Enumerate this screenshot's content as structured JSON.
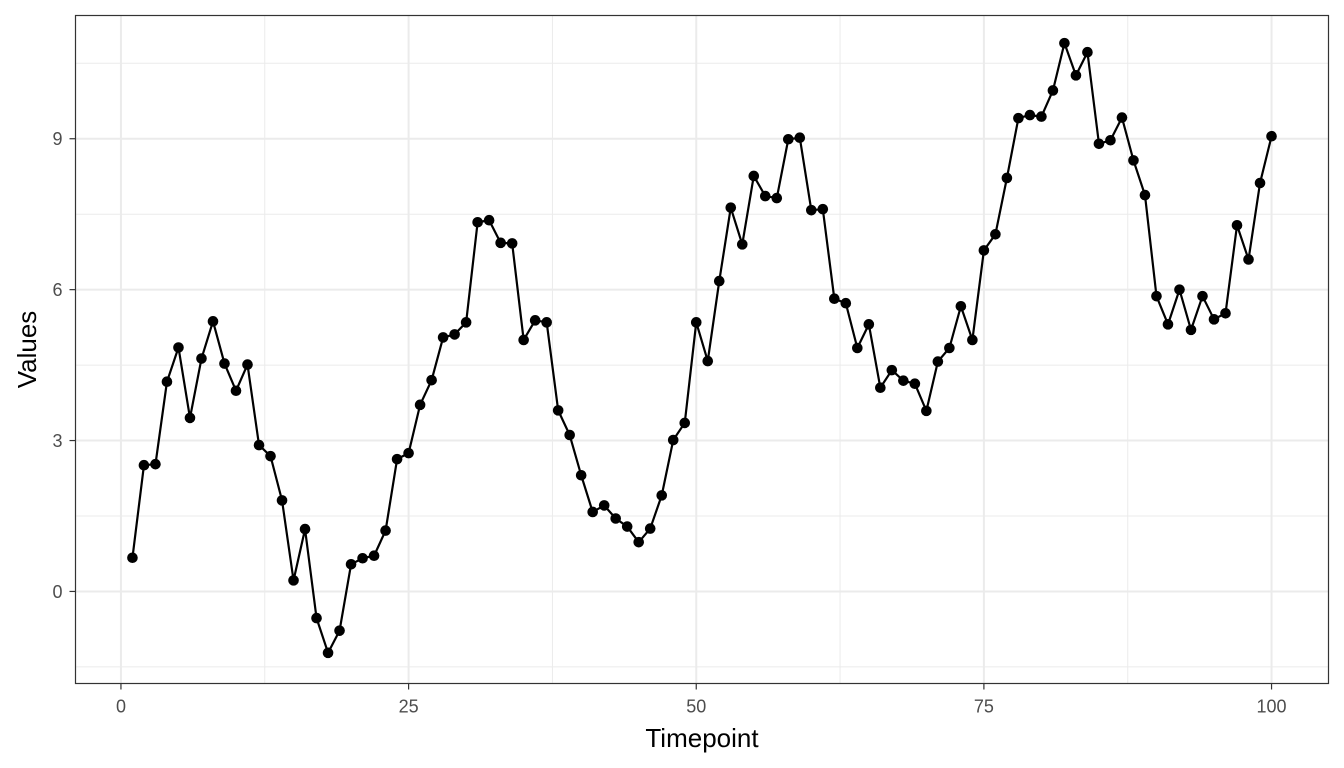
{
  "chart_data": {
    "type": "line",
    "title": "",
    "xlabel": "Timepoint",
    "ylabel": "Values",
    "xlim": [
      -3.95,
      104.95
    ],
    "ylim": [
      -1.83,
      11.45
    ],
    "x_ticks": [
      0,
      25,
      50,
      75,
      100
    ],
    "x_tick_labels": [
      "0",
      "25",
      "50",
      "75",
      "100"
    ],
    "x_minor_ticks": [
      12.5,
      37.5,
      62.5,
      87.5
    ],
    "y_ticks": [
      0,
      3,
      6,
      9
    ],
    "y_tick_labels": [
      "0",
      "3",
      "6",
      "9"
    ],
    "y_minor_ticks": [
      -1.5,
      1.5,
      4.5,
      7.5,
      10.5
    ],
    "grid": true,
    "legend": "none",
    "colors": {
      "line": "#000000",
      "point": "#000000",
      "grid": "#ebebeb",
      "panel_border": "#333333"
    },
    "series": [
      {
        "x": [
          1,
          2,
          3,
          4,
          5,
          6,
          7,
          8,
          9,
          10,
          11,
          12,
          13,
          14,
          15,
          16,
          17,
          18,
          19,
          20,
          21,
          22,
          23,
          24,
          25,
          26,
          27,
          28,
          29,
          30,
          31,
          32,
          33,
          34,
          35,
          36,
          37,
          38,
          39,
          40,
          41,
          42,
          43,
          44,
          45,
          46,
          47,
          48,
          49,
          50,
          51,
          52,
          53,
          54,
          55,
          56,
          57,
          58,
          59,
          60,
          61,
          62,
          63,
          64,
          65,
          66,
          67,
          68,
          69,
          70,
          71,
          72,
          73,
          74,
          75,
          76,
          77,
          78,
          79,
          80,
          81,
          82,
          83,
          84,
          85,
          86,
          87,
          88,
          89,
          90,
          91,
          92,
          93,
          94,
          95,
          96,
          97,
          98,
          99,
          100
        ],
        "values": [
          0.67,
          2.51,
          2.53,
          4.17,
          4.85,
          3.45,
          4.63,
          5.37,
          4.53,
          3.99,
          4.51,
          2.91,
          2.69,
          1.81,
          0.22,
          1.24,
          -0.53,
          -1.22,
          -0.78,
          0.54,
          0.66,
          0.71,
          1.21,
          2.63,
          2.75,
          3.71,
          4.2,
          5.05,
          5.11,
          5.35,
          7.34,
          7.38,
          6.93,
          6.92,
          5.0,
          5.39,
          5.35,
          3.6,
          3.11,
          2.31,
          1.58,
          1.71,
          1.45,
          1.29,
          0.98,
          1.25,
          1.91,
          3.01,
          3.35,
          5.35,
          4.58,
          6.17,
          7.63,
          6.9,
          8.26,
          7.86,
          7.82,
          8.99,
          9.02,
          7.58,
          7.6,
          5.82,
          5.73,
          4.84,
          5.31,
          4.05,
          4.4,
          4.19,
          4.13,
          3.59,
          4.57,
          4.84,
          5.67,
          5.0,
          6.78,
          7.1,
          8.22,
          9.41,
          9.47,
          9.44,
          9.96,
          10.9,
          10.26,
          10.72,
          8.9,
          8.97,
          9.42,
          8.57,
          7.88,
          5.87,
          5.31,
          6.0,
          5.2,
          5.87,
          5.41,
          5.53,
          7.28,
          6.6,
          8.12,
          9.05
        ]
      }
    ]
  }
}
